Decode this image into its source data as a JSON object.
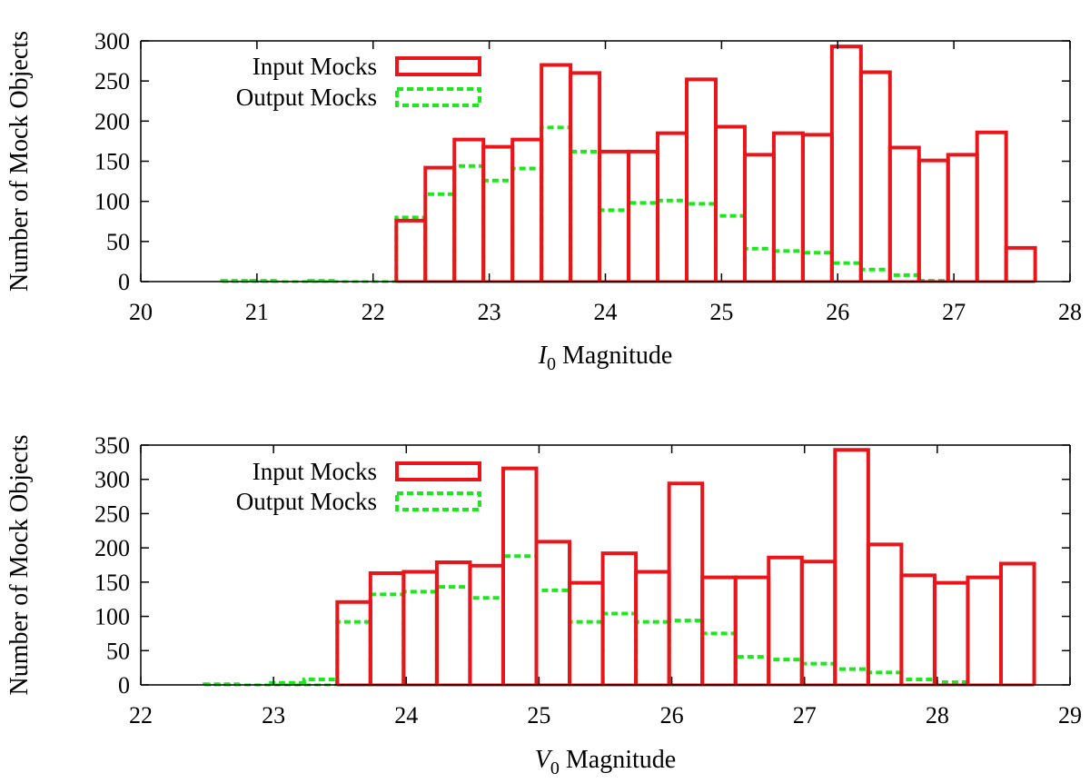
{
  "colors": {
    "input": "#e8151b",
    "output": "#1de81d",
    "axis": "#000000"
  },
  "chart_data": [
    {
      "type": "bar",
      "title": "",
      "xlabel_var": "I",
      "xlabel_sub": "0",
      "xlabel_rest": " Magnitude",
      "ylabel": "Number of Mock Objects",
      "xlim": [
        20,
        28
      ],
      "ylim": [
        0,
        300
      ],
      "xticks": [
        20,
        21,
        22,
        23,
        24,
        25,
        26,
        27,
        28
      ],
      "yticks": [
        0,
        50,
        100,
        150,
        200,
        250,
        300
      ],
      "bin_width": 0.25,
      "legend_position": "top-left",
      "series": [
        {
          "name": "Input Mocks",
          "style": "solid",
          "bins": [
            {
              "x": 22.2,
              "y": 76
            },
            {
              "x": 22.45,
              "y": 142
            },
            {
              "x": 22.7,
              "y": 177
            },
            {
              "x": 22.95,
              "y": 168
            },
            {
              "x": 23.2,
              "y": 177
            },
            {
              "x": 23.45,
              "y": 270
            },
            {
              "x": 23.7,
              "y": 260
            },
            {
              "x": 23.95,
              "y": 162
            },
            {
              "x": 24.2,
              "y": 162
            },
            {
              "x": 24.45,
              "y": 185
            },
            {
              "x": 24.7,
              "y": 252
            },
            {
              "x": 24.95,
              "y": 193
            },
            {
              "x": 25.2,
              "y": 158
            },
            {
              "x": 25.45,
              "y": 185
            },
            {
              "x": 25.7,
              "y": 183
            },
            {
              "x": 25.95,
              "y": 293
            },
            {
              "x": 26.2,
              "y": 261
            },
            {
              "x": 26.45,
              "y": 167
            },
            {
              "x": 26.7,
              "y": 151
            },
            {
              "x": 26.95,
              "y": 158
            },
            {
              "x": 27.2,
              "y": 186
            },
            {
              "x": 27.45,
              "y": 42
            }
          ]
        },
        {
          "name": "Output Mocks",
          "style": "dashed",
          "bins": [
            {
              "x": 20.7,
              "y": 1
            },
            {
              "x": 20.95,
              "y": 1
            },
            {
              "x": 21.45,
              "y": 1
            },
            {
              "x": 22.2,
              "y": 80
            },
            {
              "x": 22.45,
              "y": 109
            },
            {
              "x": 22.7,
              "y": 144
            },
            {
              "x": 22.95,
              "y": 126
            },
            {
              "x": 23.2,
              "y": 141
            },
            {
              "x": 23.45,
              "y": 192
            },
            {
              "x": 23.7,
              "y": 162
            },
            {
              "x": 23.95,
              "y": 89
            },
            {
              "x": 24.2,
              "y": 98
            },
            {
              "x": 24.45,
              "y": 101
            },
            {
              "x": 24.7,
              "y": 97
            },
            {
              "x": 24.95,
              "y": 82
            },
            {
              "x": 25.2,
              "y": 41
            },
            {
              "x": 25.45,
              "y": 38
            },
            {
              "x": 25.7,
              "y": 36
            },
            {
              "x": 25.95,
              "y": 23
            },
            {
              "x": 26.2,
              "y": 15
            },
            {
              "x": 26.45,
              "y": 8
            },
            {
              "x": 26.7,
              "y": 1
            }
          ]
        }
      ]
    },
    {
      "type": "bar",
      "title": "",
      "xlabel_var": "V",
      "xlabel_sub": "0",
      "xlabel_rest": " Magnitude",
      "ylabel": "Number of Mock Objects",
      "xlim": [
        22,
        29
      ],
      "ylim": [
        0,
        350
      ],
      "xticks": [
        22,
        23,
        24,
        25,
        26,
        27,
        28,
        29
      ],
      "yticks": [
        0,
        50,
        100,
        150,
        200,
        250,
        300,
        350
      ],
      "bin_width": 0.25,
      "legend_position": "top-left",
      "series": [
        {
          "name": "Input Mocks",
          "style": "solid",
          "bins": [
            {
              "x": 23.48,
              "y": 121
            },
            {
              "x": 23.73,
              "y": 163
            },
            {
              "x": 23.98,
              "y": 165
            },
            {
              "x": 24.23,
              "y": 179
            },
            {
              "x": 24.48,
              "y": 174
            },
            {
              "x": 24.73,
              "y": 316
            },
            {
              "x": 24.98,
              "y": 209
            },
            {
              "x": 25.23,
              "y": 149
            },
            {
              "x": 25.48,
              "y": 192
            },
            {
              "x": 25.73,
              "y": 165
            },
            {
              "x": 25.98,
              "y": 294
            },
            {
              "x": 26.23,
              "y": 157
            },
            {
              "x": 26.48,
              "y": 157
            },
            {
              "x": 26.73,
              "y": 186
            },
            {
              "x": 26.98,
              "y": 180
            },
            {
              "x": 27.23,
              "y": 343
            },
            {
              "x": 27.48,
              "y": 205
            },
            {
              "x": 27.73,
              "y": 160
            },
            {
              "x": 27.98,
              "y": 149
            },
            {
              "x": 28.23,
              "y": 157
            },
            {
              "x": 28.48,
              "y": 177
            }
          ]
        },
        {
          "name": "Output Mocks",
          "style": "dashed",
          "bins": [
            {
              "x": 22.48,
              "y": 1
            },
            {
              "x": 22.98,
              "y": 3
            },
            {
              "x": 23.23,
              "y": 8
            },
            {
              "x": 23.48,
              "y": 92
            },
            {
              "x": 23.73,
              "y": 132
            },
            {
              "x": 23.98,
              "y": 136
            },
            {
              "x": 24.23,
              "y": 143
            },
            {
              "x": 24.48,
              "y": 127
            },
            {
              "x": 24.73,
              "y": 188
            },
            {
              "x": 24.98,
              "y": 138
            },
            {
              "x": 25.23,
              "y": 92
            },
            {
              "x": 25.48,
              "y": 104
            },
            {
              "x": 25.73,
              "y": 92
            },
            {
              "x": 25.98,
              "y": 94
            },
            {
              "x": 26.23,
              "y": 75
            },
            {
              "x": 26.48,
              "y": 41
            },
            {
              "x": 26.73,
              "y": 37
            },
            {
              "x": 26.98,
              "y": 31
            },
            {
              "x": 27.23,
              "y": 23
            },
            {
              "x": 27.48,
              "y": 18
            },
            {
              "x": 27.73,
              "y": 8
            },
            {
              "x": 27.98,
              "y": 4
            }
          ]
        }
      ]
    }
  ]
}
